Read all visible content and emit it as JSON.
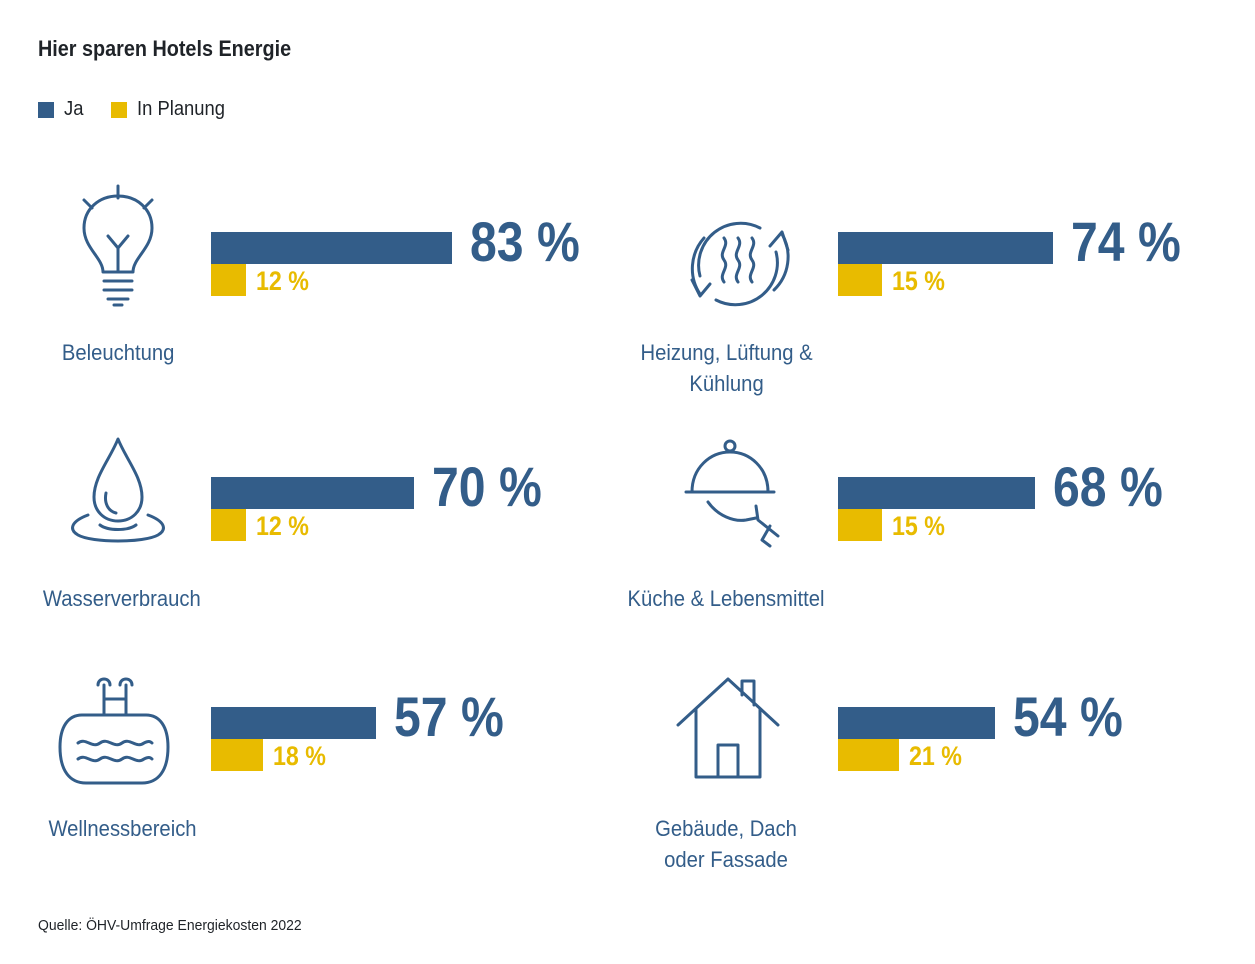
{
  "title": "Hier sparen Hotels Energie",
  "legend": [
    {
      "label": "Ja",
      "color": "#335d89"
    },
    {
      "label": "In Planung",
      "color": "#e8bb00"
    }
  ],
  "source": "Quelle: ÖHV-Umfrage Energiekosten 2022",
  "chart_data": {
    "type": "bar",
    "title": "Hier sparen Hotels Energie",
    "categories": [
      "Beleuchtung",
      "Heizung, Lüftung & Kühlung",
      "Wasserverbrauch",
      "Küche & Lebensmittel",
      "Wellnessbereich",
      "Gebäude, Dach oder Fassade"
    ],
    "series": [
      {
        "name": "Ja",
        "values": [
          83,
          74,
          70,
          68,
          57,
          54
        ]
      },
      {
        "name": "In Planung",
        "values": [
          12,
          15,
          12,
          15,
          18,
          21
        ]
      }
    ],
    "legend_position": "top-left"
  },
  "panels": [
    {
      "label_lines": [
        "Beleuchtung"
      ],
      "icon": "lightbulb-icon",
      "ja": 83,
      "plan": 12,
      "ja_text": "83 %",
      "plan_text": "12 %"
    },
    {
      "label_lines": [
        "Heizung, Lüftung &",
        "Kühlung"
      ],
      "icon": "heating-cycle-icon",
      "ja": 74,
      "plan": 15,
      "ja_text": "74 %",
      "plan_text": "15 %"
    },
    {
      "label_lines": [
        "Wasserverbrauch"
      ],
      "icon": "water-drop-icon",
      "ja": 70,
      "plan": 12,
      "ja_text": "70 %",
      "plan_text": "12 %"
    },
    {
      "label_lines": [
        "Küche & Lebensmittel"
      ],
      "icon": "cloche-icon",
      "ja": 68,
      "plan": 15,
      "ja_text": "68 %",
      "plan_text": "15 %"
    },
    {
      "label_lines": [
        "Wellnessbereich"
      ],
      "icon": "pool-icon",
      "ja": 57,
      "plan": 18,
      "ja_text": "57 %",
      "plan_text": "18 %"
    },
    {
      "label_lines": [
        "Gebäude, Dach",
        "oder Fassade"
      ],
      "icon": "house-icon",
      "ja": 54,
      "plan": 21,
      "ja_text": "54 %",
      "plan_text": "21 %"
    }
  ]
}
